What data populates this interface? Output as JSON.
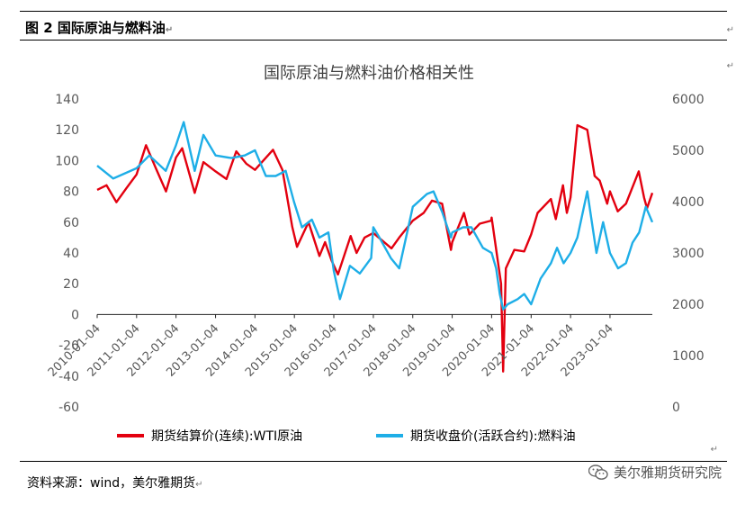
{
  "figure": {
    "label": "图 2   国际原油与燃料油",
    "source_text": "资料来源：wind，美尔雅期货",
    "watermark": "美尔雅期货研究院",
    "return_mark": "↵",
    "wechat_icon": "wechat-icon"
  },
  "chart_data": {
    "type": "line",
    "title": "国际原油与燃料油价格相关性",
    "grid": false,
    "legend_position": "bottom",
    "x_ticks": [
      "2010-01-04",
      "2011-01-04",
      "2012-01-04",
      "2013-01-04",
      "2014-01-04",
      "2015-01-04",
      "2016-01-04",
      "2017-01-04",
      "2018-01-04",
      "2019-01-04",
      "2020-01-04",
      "2021-01-04",
      "2022-01-04",
      "2023-01-04"
    ],
    "x_range": [
      "2010-01-04",
      "2024-01-31"
    ],
    "y_left": {
      "ticks": [
        140,
        120,
        100,
        80,
        60,
        40,
        20,
        0,
        -20,
        -40,
        -60
      ],
      "ylim": [
        -60,
        140
      ]
    },
    "y_right": {
      "ticks": [
        6000,
        5000,
        4000,
        3000,
        2000,
        1000,
        0
      ],
      "ylim": [
        0,
        6000
      ]
    },
    "series": [
      {
        "name": "期货结算价(连续):WTI原油",
        "axis": "left",
        "color": "#e3000f",
        "x": [
          "2010-01-04",
          "2010-04-01",
          "2010-07-01",
          "2010-10-01",
          "2011-01-04",
          "2011-04-01",
          "2011-07-01",
          "2011-10-03",
          "2012-01-04",
          "2012-03-01",
          "2012-06-25",
          "2012-09-14",
          "2013-01-04",
          "2013-04-15",
          "2013-07-15",
          "2013-10-15",
          "2014-01-04",
          "2014-06-20",
          "2014-09-15",
          "2014-12-15",
          "2015-01-28",
          "2015-05-15",
          "2015-08-24",
          "2015-10-15",
          "2015-12-15",
          "2016-02-11",
          "2016-06-08",
          "2016-08-02",
          "2016-10-15",
          "2017-01-04",
          "2017-06-21",
          "2017-09-01",
          "2018-01-04",
          "2018-04-15",
          "2018-07-01",
          "2018-10-03",
          "2018-12-24",
          "2019-01-04",
          "2019-04-23",
          "2019-06-12",
          "2019-09-16",
          "2019-12-31",
          "2020-01-04",
          "2020-03-09",
          "2020-04-01",
          "2020-04-20",
          "2020-05-15",
          "2020-08-01",
          "2020-11-01",
          "2021-01-04",
          "2021-03-05",
          "2021-07-06",
          "2021-08-20",
          "2021-10-26",
          "2021-12-01",
          "2022-01-04",
          "2022-03-08",
          "2022-06-08",
          "2022-08-15",
          "2022-10-01",
          "2022-12-09",
          "2023-01-04",
          "2023-03-17",
          "2023-06-01",
          "2023-09-27",
          "2023-11-15",
          "2023-12-13",
          "2024-01-31"
        ],
        "y": [
          81,
          84,
          73,
          82,
          91,
          110,
          95,
          80,
          102,
          108,
          79,
          99,
          93,
          88,
          106,
          98,
          94,
          107,
          94,
          57,
          44,
          60,
          38,
          47,
          35,
          26,
          51,
          40,
          50,
          53,
          43,
          50,
          61,
          66,
          74,
          72,
          42,
          47,
          66,
          52,
          59,
          61,
          63,
          31,
          20,
          -37,
          30,
          42,
          41,
          52,
          66,
          75,
          62,
          84,
          66,
          76,
          123,
          120,
          90,
          87,
          72,
          80,
          67,
          72,
          93,
          76,
          69,
          79
        ]
      },
      {
        "name": "期货收盘价(活跃合约):燃料油",
        "axis": "right",
        "color": "#1eaee7",
        "x": [
          "2010-01-04",
          "2010-06-01",
          "2011-01-04",
          "2011-05-01",
          "2011-10-01",
          "2012-01-04",
          "2012-03-15",
          "2012-06-25",
          "2012-09-14",
          "2013-01-04",
          "2013-06-01",
          "2013-10-01",
          "2014-01-04",
          "2014-04-15",
          "2014-07-15",
          "2014-10-15",
          "2014-12-31",
          "2015-03-15",
          "2015-06-15",
          "2015-08-24",
          "2015-11-15",
          "2016-01-04",
          "2016-03-01",
          "2016-06-01",
          "2016-09-01",
          "2016-12-15",
          "2017-01-04",
          "2017-03-01",
          "2017-06-15",
          "2017-09-01",
          "2018-01-04",
          "2018-05-15",
          "2018-07-15",
          "2018-10-03",
          "2018-12-24",
          "2019-01-04",
          "2019-04-15",
          "2019-07-01",
          "2019-10-15",
          "2020-01-04",
          "2020-02-15",
          "2020-03-20",
          "2020-04-20",
          "2020-06-01",
          "2020-09-01",
          "2020-11-01",
          "2021-01-04",
          "2021-04-01",
          "2021-07-06",
          "2021-09-01",
          "2021-11-01",
          "2022-01-04",
          "2022-03-08",
          "2022-06-08",
          "2022-09-01",
          "2022-11-01",
          "2023-01-04",
          "2023-03-20",
          "2023-06-01",
          "2023-08-01",
          "2023-10-01",
          "2023-12-01",
          "2024-01-31"
        ],
        "y": [
          4700,
          4450,
          4650,
          4900,
          4600,
          5100,
          5550,
          4600,
          5300,
          4900,
          4850,
          4900,
          5000,
          4500,
          4500,
          4600,
          4000,
          3500,
          3650,
          3300,
          3400,
          2650,
          2100,
          2750,
          2600,
          2900,
          3500,
          3300,
          2900,
          2700,
          3900,
          4150,
          4200,
          3800,
          3300,
          3400,
          3500,
          3500,
          3100,
          3000,
          2700,
          2200,
          1900,
          2000,
          2100,
          2200,
          2000,
          2500,
          2800,
          3100,
          2800,
          3000,
          3300,
          4200,
          3000,
          3600,
          3000,
          2700,
          2800,
          3200,
          3400,
          3900,
          3600
        ]
      }
    ]
  }
}
